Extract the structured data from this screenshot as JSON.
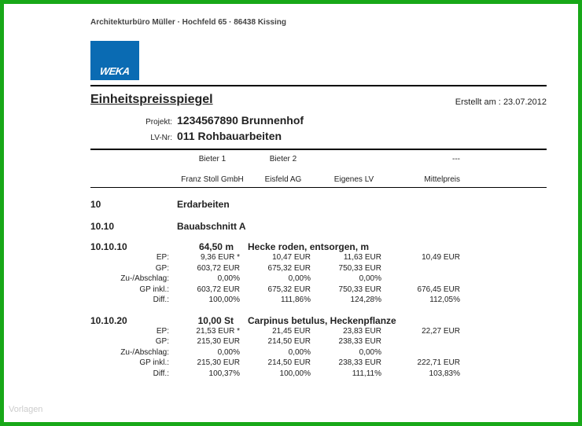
{
  "sender": "Architekturbüro Müller · Hochfeld 65 · 86438 Kissing",
  "logo_text": "WEKA",
  "logo_bg": "#0a6bb3",
  "title": "Einheitspreisspiegel",
  "created_label": "Erstellt am :",
  "created_date": "23.07.2012",
  "meta": {
    "projekt_label": "Projekt:",
    "projekt_value": "1234567890 Brunnenhof",
    "lv_label": "LV-Nr:",
    "lv_value": "011 Rohbauarbeiten"
  },
  "bidders": {
    "head": [
      "Bieter 1",
      "Bieter 2",
      "",
      "---"
    ],
    "sub": [
      "Franz Stoll GmbH",
      "Eisfeld AG",
      "Eigenes LV",
      "Mittelpreis"
    ]
  },
  "sections": {
    "s1": {
      "num": "10",
      "title": "Erdarbeiten"
    },
    "s2": {
      "num": "10.10",
      "title": "Bauabschnitt A"
    }
  },
  "items": {
    "i1": {
      "num": "10.10.10",
      "qty": "64,50 m",
      "desc": "Hecke roden, entsorgen, m",
      "rows": {
        "ep": {
          "label": "EP:",
          "c1": "9,36 EUR *",
          "c2": "10,47 EUR",
          "c3": "11,63 EUR",
          "c4": "10,49 EUR"
        },
        "gp": {
          "label": "GP:",
          "c1": "603,72 EUR",
          "c2": "675,32 EUR",
          "c3": "750,33 EUR",
          "c4": ""
        },
        "zu": {
          "label": "Zu-/Abschlag:",
          "c1": "0,00%",
          "c2": "0,00%",
          "c3": "0,00%",
          "c4": ""
        },
        "gpi": {
          "label": "GP inkl.:",
          "c1": "603,72 EUR",
          "c2": "675,32 EUR",
          "c3": "750,33 EUR",
          "c4": "676,45 EUR"
        },
        "diff": {
          "label": "Diff.:",
          "c1": "100,00%",
          "c2": "111,86%",
          "c3": "124,28%",
          "c4": "112,05%"
        }
      }
    },
    "i2": {
      "num": "10.10.20",
      "qty": "10,00 St",
      "desc": "Carpinus betulus, Heckenpflanze",
      "rows": {
        "ep": {
          "label": "EP:",
          "c1": "21,53 EUR *",
          "c2": "21,45 EUR",
          "c3": "23,83 EUR",
          "c4": "22,27 EUR"
        },
        "gp": {
          "label": "GP:",
          "c1": "215,30 EUR",
          "c2": "214,50 EUR",
          "c3": "238,33 EUR",
          "c4": ""
        },
        "zu": {
          "label": "Zu-/Abschlag:",
          "c1": "0,00%",
          "c2": "0,00%",
          "c3": "0,00%",
          "c4": ""
        },
        "gpi": {
          "label": "GP inkl.:",
          "c1": "215,30 EUR",
          "c2": "214,50 EUR",
          "c3": "238,33 EUR",
          "c4": "222,71 EUR"
        },
        "diff": {
          "label": "Diff.:",
          "c1": "100,37%",
          "c2": "100,00%",
          "c3": "111,11%",
          "c4": "103,83%"
        }
      }
    }
  },
  "watermark": "Vorlagen"
}
